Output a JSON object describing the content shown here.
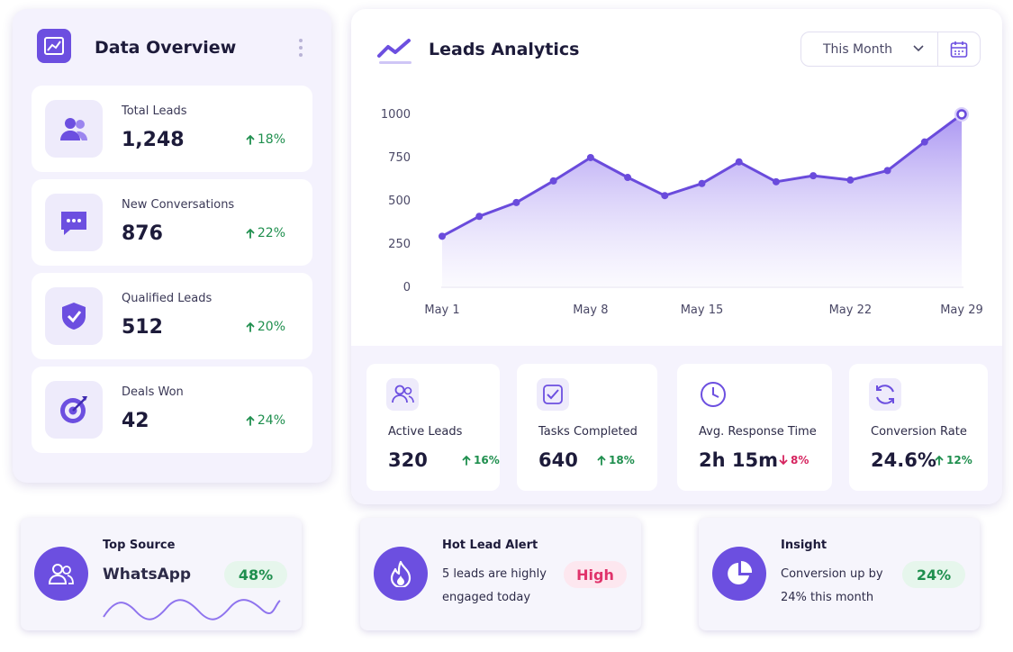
{
  "overview": {
    "title": "Data Overview",
    "stats": [
      {
        "label": "Total Leads",
        "value": "1,248",
        "change": "18%",
        "trend": "up"
      },
      {
        "label": "New Conversations",
        "value": "876",
        "change": "22%",
        "trend": "up"
      },
      {
        "label": "Qualified Leads",
        "value": "512",
        "change": "20%",
        "trend": "up"
      },
      {
        "label": "Deals Won",
        "value": "42",
        "change": "24%",
        "trend": "up"
      }
    ]
  },
  "analytics": {
    "title": "Leads Analytics",
    "filter": "This Month",
    "chart_data": {
      "type": "line",
      "color": "#6a4bdc",
      "categories": [
        "May 1",
        null,
        null,
        null,
        "May 8",
        null,
        null,
        "May 15",
        null,
        null,
        null,
        "May 22",
        null,
        null,
        "May 29"
      ],
      "values": [
        290,
        405,
        485,
        610,
        745,
        630,
        525,
        595,
        720,
        605,
        640,
        615,
        670,
        835,
        995
      ],
      "ylim": [
        0,
        1000
      ],
      "yticks": [
        0,
        250,
        500,
        750,
        1000
      ],
      "grid": false
    },
    "kpis": [
      {
        "label": "Active Leads",
        "value": "320",
        "change": "16%",
        "trend": "up"
      },
      {
        "label": "Tasks Completed",
        "value": "640",
        "change": "18%",
        "trend": "up"
      },
      {
        "label": "Avg. Response Time",
        "value": "2h 15m",
        "change": "8%",
        "trend": "down"
      },
      {
        "label": "Conversion Rate",
        "value": "24.6%",
        "change": "12%",
        "trend": "up"
      }
    ]
  },
  "cards": [
    {
      "title": "Top Source",
      "text": "WhatsApp",
      "badge": "48%"
    },
    {
      "title": "Hot Lead Alert",
      "text": "5 leads are highly engaged today",
      "badge": "High"
    },
    {
      "title": "Insight",
      "text": "Conversion up by 24% this month",
      "badge": "24%"
    }
  ]
}
